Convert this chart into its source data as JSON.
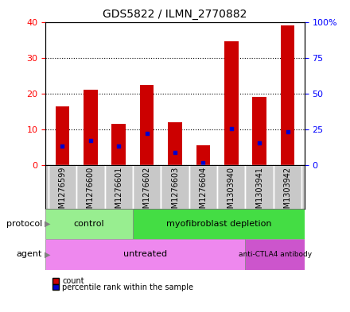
{
  "title": "GDS5822 / ILMN_2770882",
  "samples": [
    "GSM1276599",
    "GSM1276600",
    "GSM1276601",
    "GSM1276602",
    "GSM1276603",
    "GSM1276604",
    "GSM1303940",
    "GSM1303941",
    "GSM1303942"
  ],
  "counts": [
    16.5,
    21.0,
    11.5,
    22.5,
    12.0,
    5.5,
    34.5,
    19.0,
    39.0
  ],
  "percentile_ranks": [
    13.5,
    17.5,
    13.5,
    22.5,
    9.0,
    2.0,
    25.5,
    15.5,
    23.5
  ],
  "ylim_left": [
    0,
    40
  ],
  "ylim_right": [
    0,
    100
  ],
  "yticks_left": [
    0,
    10,
    20,
    30,
    40
  ],
  "yticks_right": [
    0,
    25,
    50,
    75,
    100
  ],
  "yticklabels_right": [
    "0",
    "25",
    "50",
    "75",
    "100%"
  ],
  "bar_color": "#cc0000",
  "percentile_color": "#0000cc",
  "bar_width": 0.5,
  "label_bg_color": "#c8c8c8",
  "label_sep_color": "#ffffff",
  "protocol_control_color": "#98ee90",
  "protocol_myofib_color": "#44dd44",
  "agent_untreated_color": "#ee88ee",
  "agent_antictla4_color": "#cc55cc",
  "legend_count_color": "#cc0000",
  "legend_pct_color": "#0000cc",
  "title_fontsize": 10,
  "tick_fontsize": 8,
  "label_fontsize": 7,
  "row_label_fontsize": 8,
  "annotation_fontsize": 8
}
